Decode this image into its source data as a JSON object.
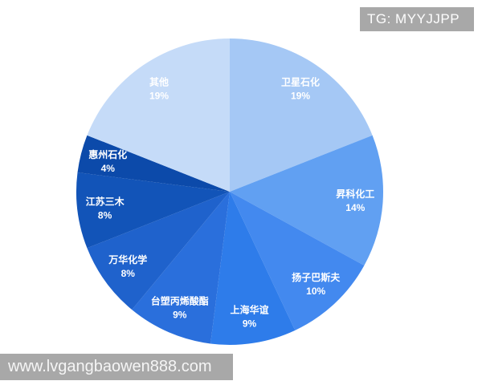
{
  "watermarks": {
    "telegram": "TG: MYYJJPP",
    "website": "www.lvgangbaowen888.com"
  },
  "chart_data": {
    "type": "pie",
    "title": "",
    "categories": [
      "卫星石化",
      "昇科化工",
      "扬子巴斯夫",
      "上海华谊",
      "台塑丙烯酸酯",
      "万华化学",
      "江苏三木",
      "惠州石化",
      "其他"
    ],
    "values": [
      19,
      14,
      10,
      9,
      9,
      8,
      8,
      4,
      19
    ],
    "unit": "%",
    "start_angle": "top",
    "direction": "clockwise",
    "legend": "none",
    "labels_position": "inside",
    "label_color": "#ffffff",
    "background": "#ffffff",
    "colors": [
      "#a5c8f5",
      "#61a0f2",
      "#4389ef",
      "#2e7cea",
      "#2a6fdc",
      "#1f62cc",
      "#1254b8",
      "#0c4aaa",
      "#c5dbf8"
    ]
  }
}
